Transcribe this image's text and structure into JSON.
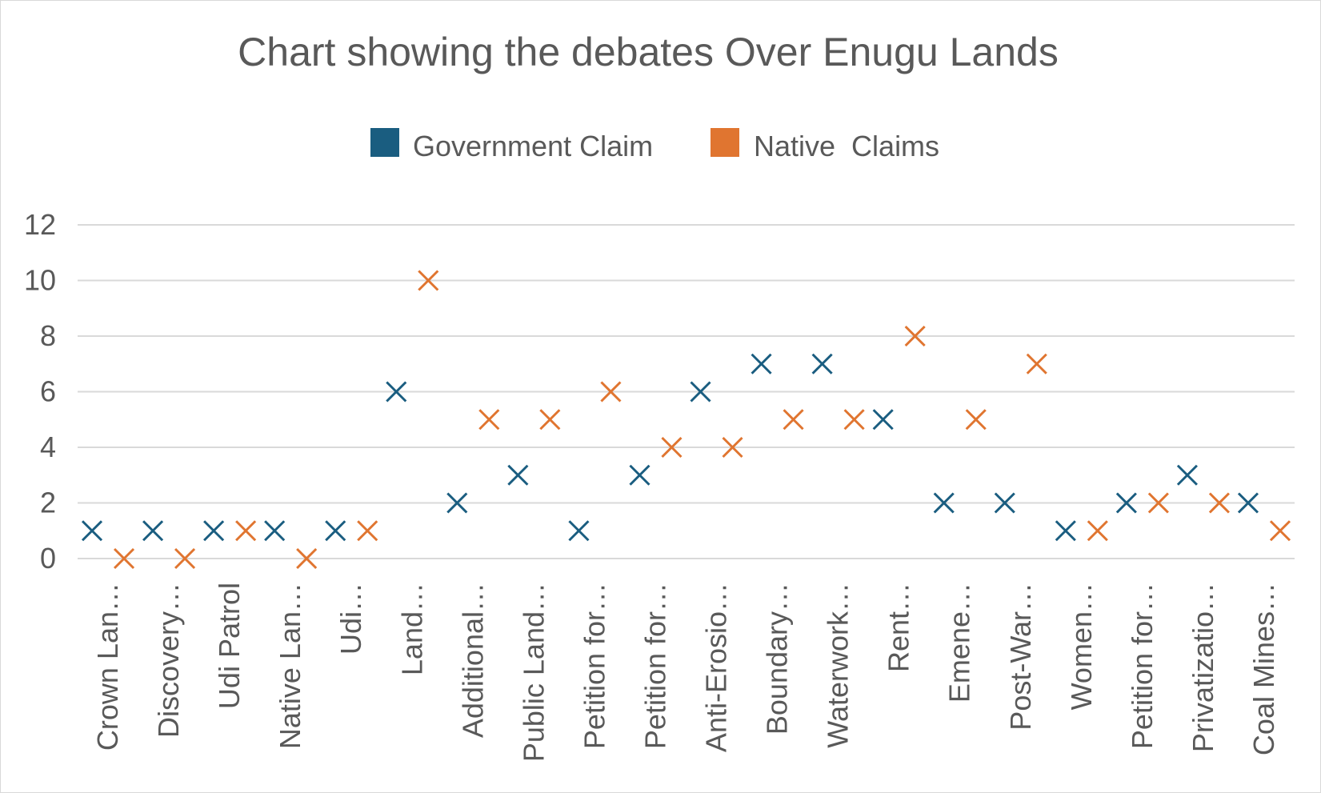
{
  "chart_data": {
    "type": "scatter",
    "title": "Chart showing the debates Over Enugu Lands",
    "xlabel": "",
    "ylabel": "",
    "ylim": [
      0,
      12
    ],
    "yticks": [
      0,
      2,
      4,
      6,
      8,
      10,
      12
    ],
    "grid": true,
    "legend": "top",
    "marker": "x",
    "categories": [
      "Crown Lan…",
      "Discovery…",
      "Udi Patrol",
      "Native Lan…",
      "Udi…",
      "Land…",
      "Additional…",
      "Public Land…",
      "Petition for…",
      "Petition for…",
      "Anti-Erosio…",
      "Boundary…",
      "Waterwork…",
      "Rent…",
      "Emene…",
      "Post-War…",
      "Women…",
      "Petition for…",
      "Privatizatio…",
      "Coal Mines…"
    ],
    "series": [
      {
        "name": "Government Claim",
        "color": "#1a5d80",
        "values": [
          1,
          1,
          1,
          1,
          1,
          6,
          2,
          3,
          1,
          3,
          6,
          7,
          7,
          5,
          2,
          2,
          1,
          2,
          3,
          2
        ]
      },
      {
        "name": "Native  Claims",
        "color": "#e07530",
        "values": [
          0,
          0,
          1,
          0,
          1,
          10,
          5,
          5,
          6,
          4,
          4,
          5,
          5,
          8,
          5,
          7,
          1,
          2,
          2,
          1
        ]
      }
    ]
  }
}
